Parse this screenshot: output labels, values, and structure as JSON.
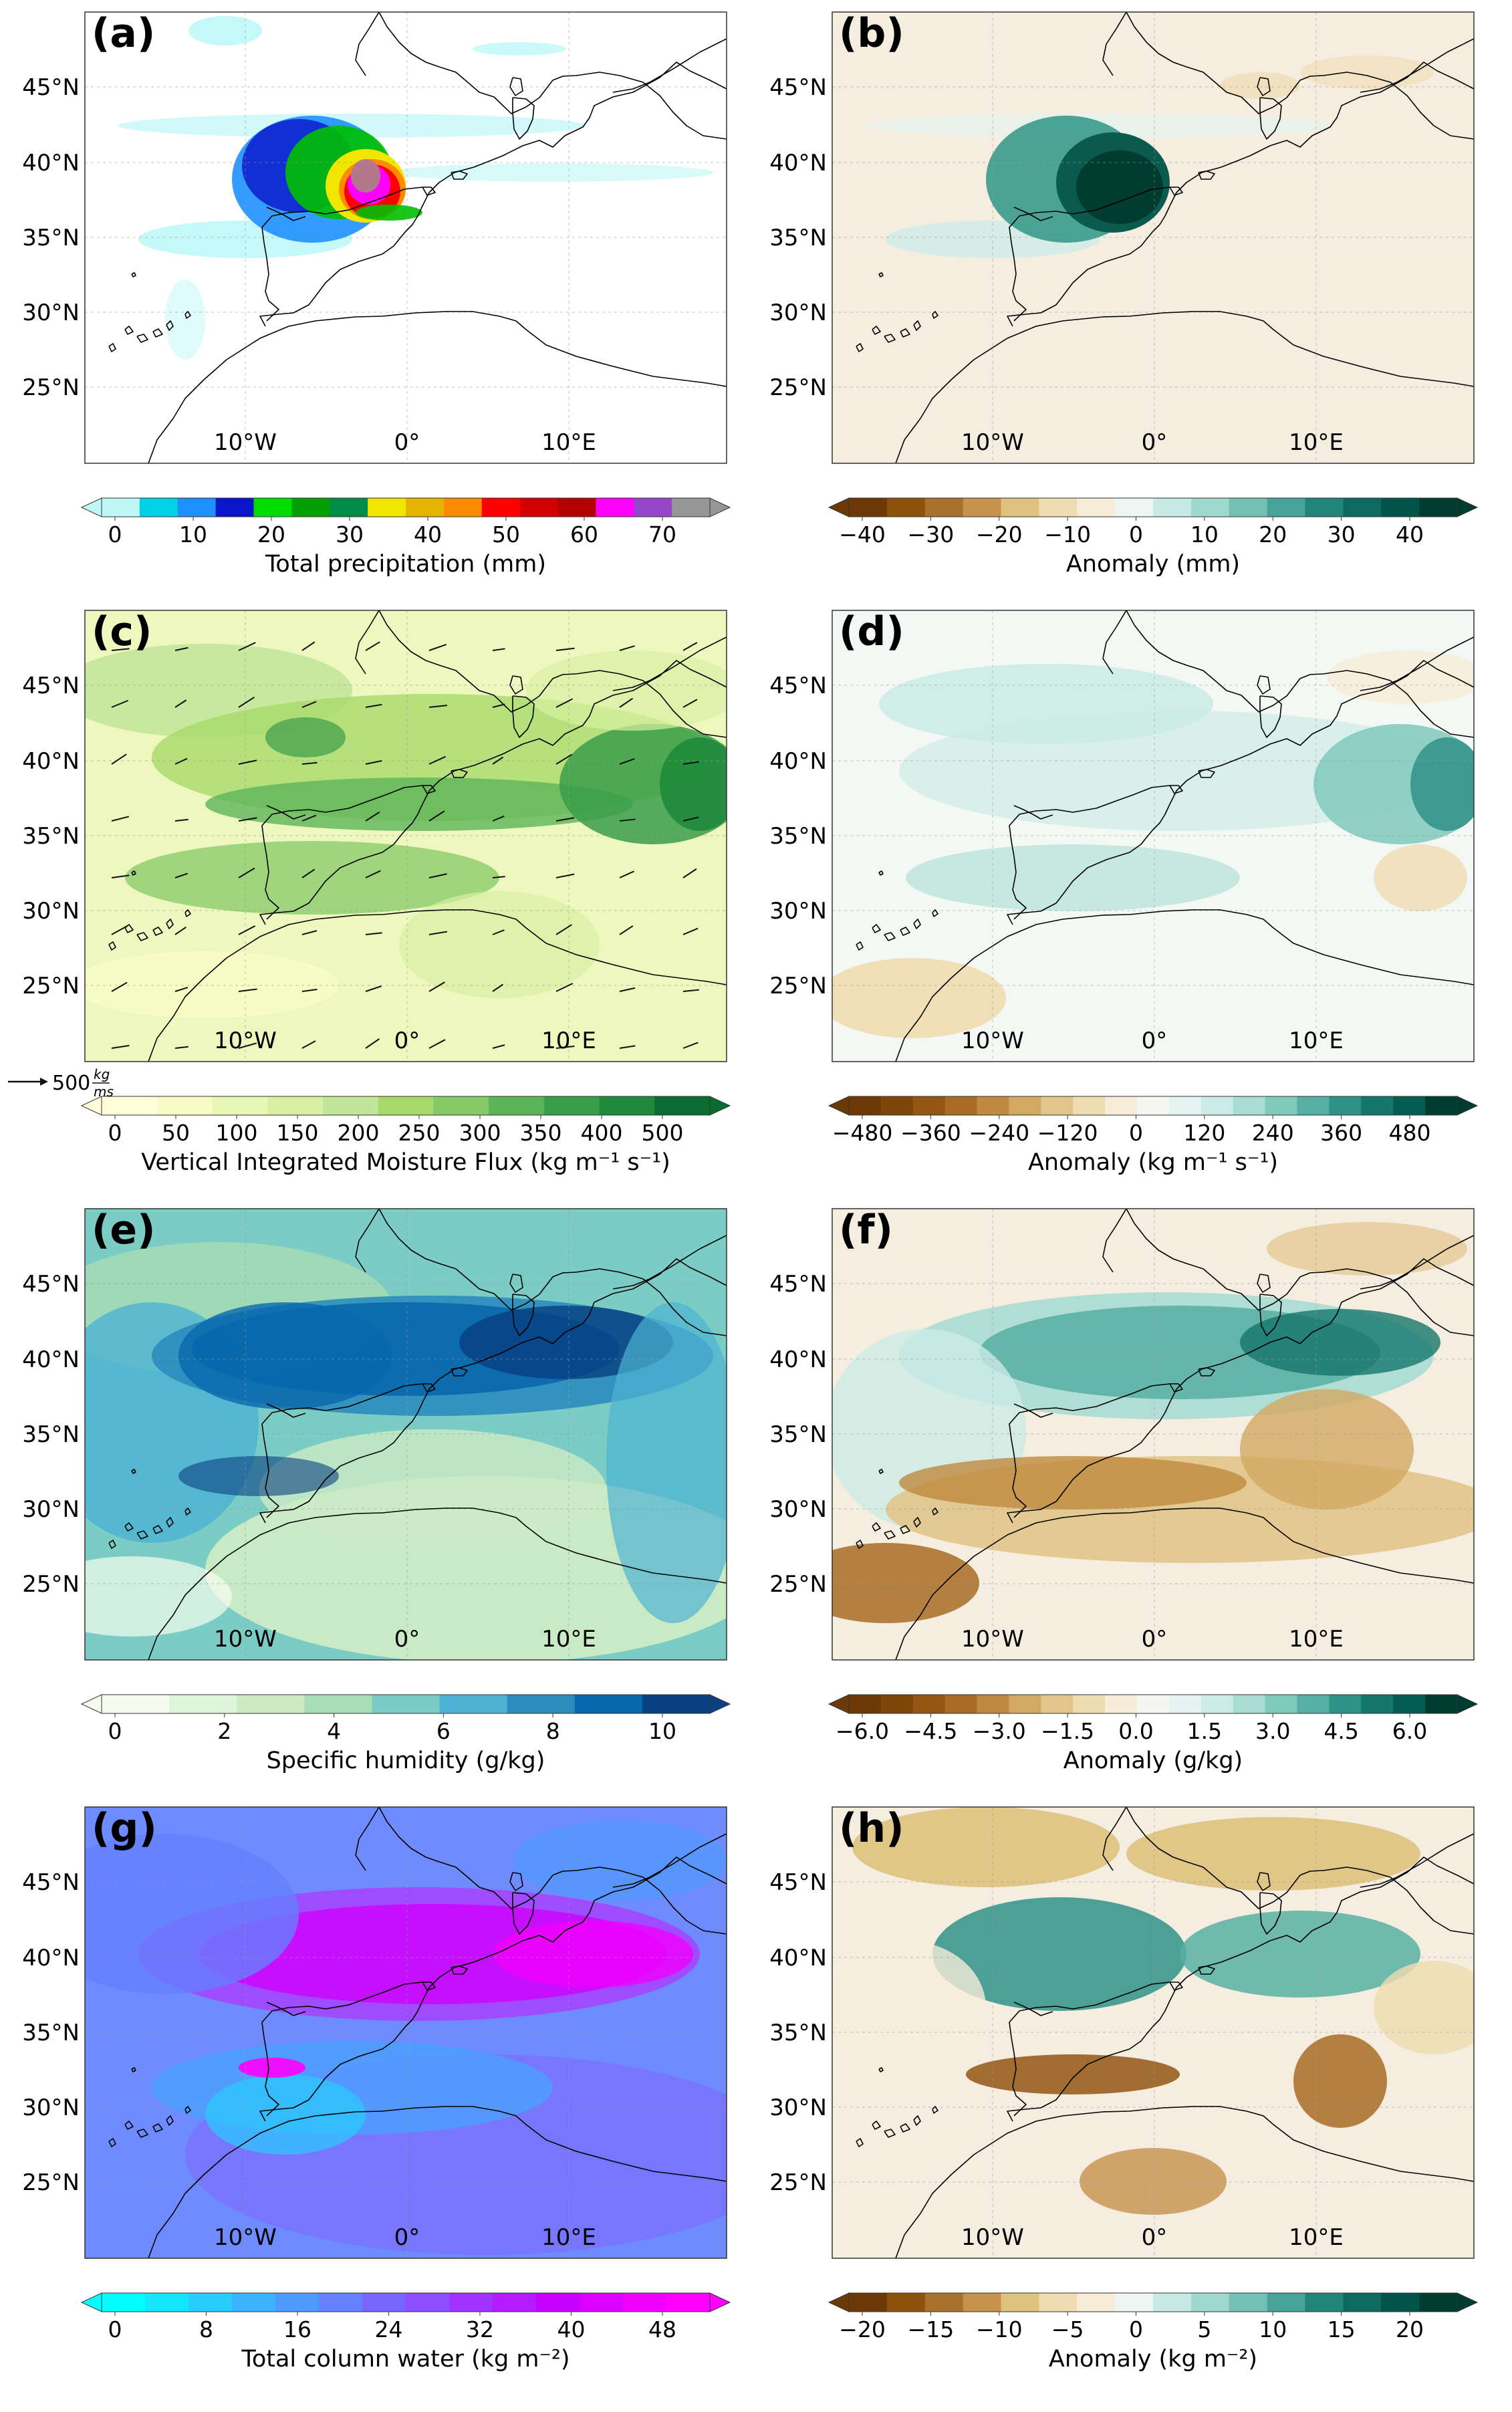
{
  "figure": {
    "lat_labels": [
      "45°N",
      "40°N",
      "35°N",
      "30°N",
      "25°N"
    ],
    "lon_labels": [
      "10°W",
      "0°",
      "10°E"
    ],
    "vector_key": {
      "value": "500",
      "unit_num": "kg",
      "unit_den": "ms"
    },
    "panels": [
      {
        "id": "a",
        "label": "(a)",
        "field": "precip",
        "colorbar": {
          "label": "Total precipitation (mm)",
          "ticks": [
            "0",
            "10",
            "20",
            "30",
            "40",
            "50",
            "60",
            "70"
          ],
          "colors": [
            "#bff7f7",
            "#00d2e6",
            "#1e90ff",
            "#0a14c8",
            "#00dc00",
            "#00a000",
            "#008c46",
            "#f0e600",
            "#e6b400",
            "#ff8c00",
            "#ff0000",
            "#d20000",
            "#b40000",
            "#ff00ff",
            "#9646c8",
            "#969696"
          ]
        }
      },
      {
        "id": "b",
        "label": "(b)",
        "field": "precip_anom",
        "colorbar": {
          "label": "Anomaly (mm)",
          "ticks": [
            "−40",
            "−30",
            "−20",
            "−10",
            "0",
            "10",
            "20",
            "30",
            "40"
          ],
          "colors": [
            "#6b3a07",
            "#8c510a",
            "#a9712b",
            "#c6924d",
            "#dfc27d",
            "#efdcb0",
            "#f6ecd8",
            "#eef6f4",
            "#c7eae5",
            "#9fd8cf",
            "#74c0b4",
            "#45a398",
            "#22857a",
            "#0c6b5e",
            "#01544a",
            "#003c30"
          ]
        }
      },
      {
        "id": "c",
        "label": "(c)",
        "field": "flux",
        "colorbar": {
          "label": "Vertical Integrated Moisture Flux (kg m⁻¹ s⁻¹)",
          "ticks": [
            "0",
            "50",
            "100",
            "150",
            "200",
            "250",
            "300",
            "350",
            "400",
            "500"
          ],
          "colors": [
            "#ffffd9",
            "#f7fcc6",
            "#eaf6b6",
            "#d9f0a3",
            "#c2e699",
            "#a6d96a",
            "#84ca66",
            "#5cb458",
            "#3a9d4a",
            "#1f8a3c",
            "#0b6b30"
          ]
        }
      },
      {
        "id": "d",
        "label": "(d)",
        "field": "flux_anom",
        "colorbar": {
          "label": "Anomaly (kg m⁻¹ s⁻¹)",
          "ticks": [
            "−480",
            "−360",
            "−240",
            "−120",
            "0",
            "120",
            "240",
            "360",
            "480"
          ],
          "colors": [
            "#6b3a07",
            "#7f460a",
            "#935614",
            "#a86c24",
            "#bf8a3f",
            "#d2a862",
            "#e2c58a",
            "#efdcb0",
            "#f6ecd8",
            "#f5f5f2",
            "#e6f4f1",
            "#cdebe6",
            "#a9dcd3",
            "#80c9bd",
            "#57afa3",
            "#2f9288",
            "#15766c",
            "#055c52",
            "#003c30"
          ]
        }
      },
      {
        "id": "e",
        "label": "(e)",
        "field": "humidity",
        "colorbar": {
          "label": "Specific humidity (g/kg)",
          "ticks": [
            "0",
            "2",
            "4",
            "6",
            "8",
            "10"
          ],
          "colors": [
            "#f7fcf0",
            "#e0f3db",
            "#ccebc5",
            "#a8ddb5",
            "#7bccc4",
            "#4eb3d3",
            "#2b8cbe",
            "#0868ac",
            "#084081"
          ]
        }
      },
      {
        "id": "f",
        "label": "(f)",
        "field": "humidity_anom",
        "colorbar": {
          "label": "Anomaly (g/kg)",
          "ticks": [
            "−6.0",
            "−4.5",
            "−3.0",
            "−1.5",
            "0.0",
            "1.5",
            "3.0",
            "4.5",
            "6.0"
          ],
          "colors": [
            "#6b3a07",
            "#7f460a",
            "#935614",
            "#a86c24",
            "#bf8a3f",
            "#d2a862",
            "#e2c58a",
            "#efdcb0",
            "#f6ecd8",
            "#f5f5f2",
            "#e6f4f1",
            "#cdebe6",
            "#a9dcd3",
            "#80c9bd",
            "#57afa3",
            "#2f9288",
            "#15766c",
            "#055c52",
            "#003c30"
          ]
        }
      },
      {
        "id": "g",
        "label": "(g)",
        "field": "tcw",
        "colorbar": {
          "label": "Total column water (kg m⁻²)",
          "ticks": [
            "0",
            "8",
            "16",
            "24",
            "32",
            "40",
            "48"
          ],
          "colors": [
            "#00ffff",
            "#14e6ff",
            "#28ccff",
            "#3cb3ff",
            "#5099ff",
            "#6480ff",
            "#7866ff",
            "#8c4dff",
            "#a033ff",
            "#b41aff",
            "#c800ff",
            "#dc00ff",
            "#f000ff",
            "#ff00ff"
          ]
        }
      },
      {
        "id": "h",
        "label": "(h)",
        "field": "tcw_anom",
        "colorbar": {
          "label": "Anomaly (kg m⁻²)",
          "ticks": [
            "−20",
            "−15",
            "−10",
            "−5",
            "0",
            "5",
            "10",
            "15",
            "20"
          ],
          "colors": [
            "#6b3a07",
            "#8c510a",
            "#a9712b",
            "#c6924d",
            "#dfc27d",
            "#efdcb0",
            "#f6ecd8",
            "#eef6f4",
            "#c7eae5",
            "#9fd8cf",
            "#74c0b4",
            "#45a398",
            "#22857a",
            "#0c6b5e",
            "#01544a",
            "#003c30"
          ]
        }
      }
    ]
  }
}
